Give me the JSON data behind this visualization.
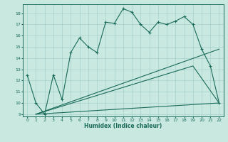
{
  "xlabel": "Humidex (Indice chaleur)",
  "bg_color": "#c8e8e0",
  "line_color": "#1a6b5a",
  "grid_color": "#a8d0cc",
  "xlim": [
    -0.5,
    22.5
  ],
  "ylim": [
    8.8,
    18.8
  ],
  "yticks": [
    9,
    10,
    11,
    12,
    13,
    14,
    15,
    16,
    17,
    18
  ],
  "xticks": [
    0,
    1,
    2,
    3,
    4,
    5,
    6,
    7,
    8,
    9,
    10,
    11,
    12,
    13,
    14,
    15,
    16,
    17,
    18,
    19,
    20,
    21,
    22
  ],
  "series1_x": [
    0,
    1,
    2,
    3,
    4,
    5,
    6,
    7,
    8,
    9,
    10,
    11,
    12,
    13,
    14,
    15,
    16,
    17,
    18,
    19,
    20,
    21,
    22
  ],
  "series1_y": [
    12.5,
    10.0,
    9.0,
    12.5,
    10.3,
    14.5,
    15.8,
    15.0,
    14.5,
    17.2,
    17.1,
    18.4,
    18.1,
    17.0,
    16.3,
    17.2,
    17.0,
    17.3,
    17.7,
    17.0,
    14.8,
    13.3,
    10.0
  ],
  "series2_x": [
    1,
    22
  ],
  "series2_y": [
    9.0,
    14.8
  ],
  "series3_x": [
    1,
    19,
    22
  ],
  "series3_y": [
    9.0,
    13.3,
    10.0
  ],
  "series4_x": [
    1,
    22
  ],
  "series4_y": [
    9.0,
    10.0
  ]
}
